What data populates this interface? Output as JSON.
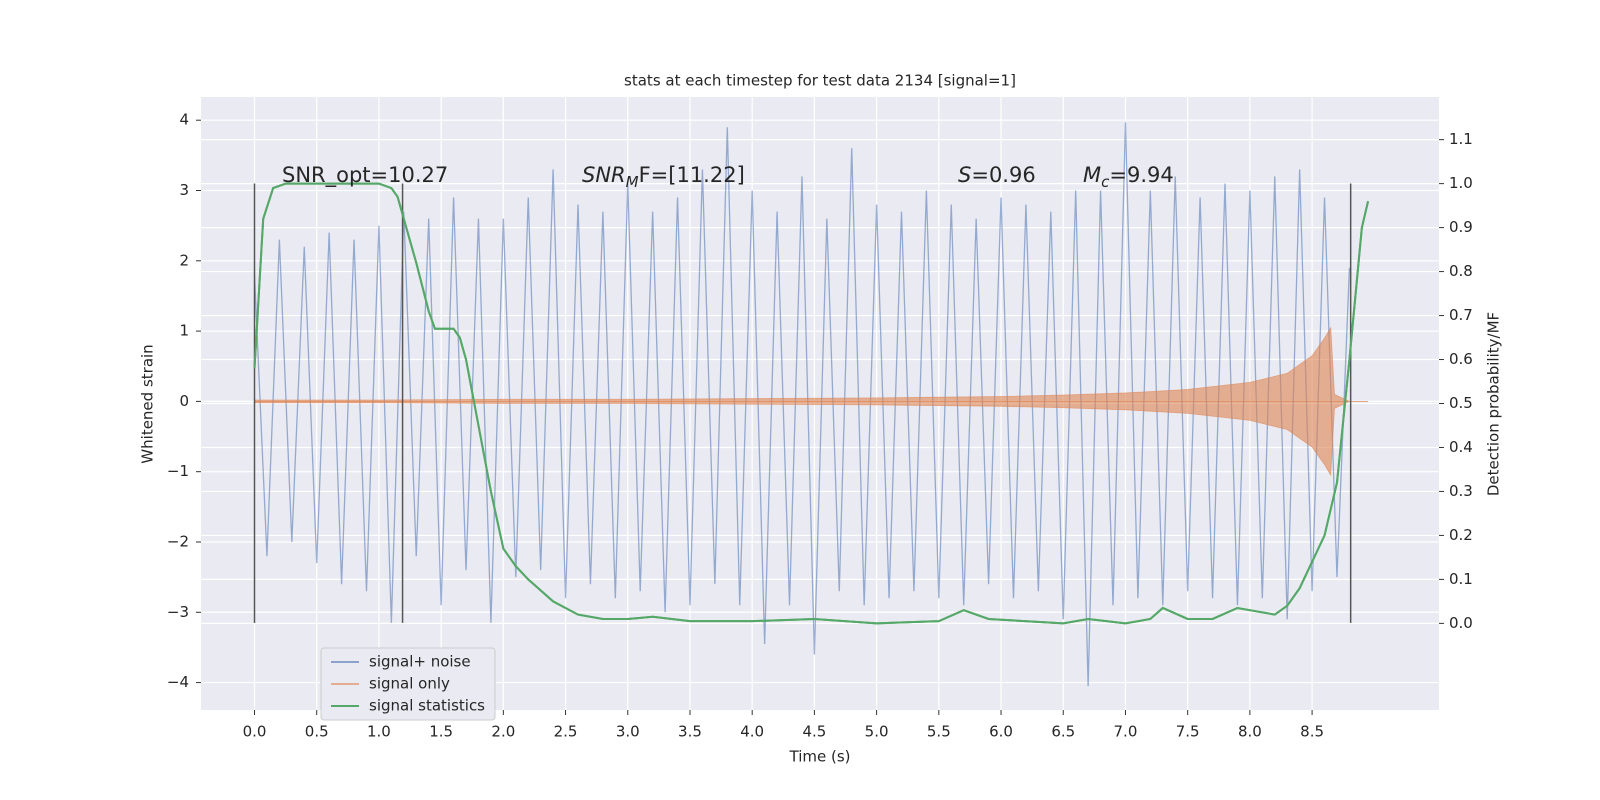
{
  "chart_data": {
    "type": "line",
    "title": "stats at each timestep for test data 2134 [signal=1]",
    "x_label": "Time (s)",
    "y_label": "Whitened strain",
    "y2_label": "Detection probability/MF",
    "xlim": [
      -0.43,
      9.52
    ],
    "ylim": [
      -4.39,
      4.33
    ],
    "y2lim": [
      -0.197,
      1.197
    ],
    "xticks": [
      {
        "value": 0,
        "label": "0.0"
      },
      {
        "value": 0.5,
        "label": "0.5"
      },
      {
        "value": 1,
        "label": "1.0"
      },
      {
        "value": 1.5,
        "label": "1.5"
      },
      {
        "value": 2,
        "label": "2.0"
      },
      {
        "value": 2.5,
        "label": "2.5"
      },
      {
        "value": 3,
        "label": "3.0"
      },
      {
        "value": 3.5,
        "label": "3.5"
      },
      {
        "value": 4,
        "label": "4.0"
      },
      {
        "value": 4.5,
        "label": "4.5"
      },
      {
        "value": 5,
        "label": "5.0"
      },
      {
        "value": 5.5,
        "label": "5.5"
      },
      {
        "value": 6,
        "label": "6.0"
      },
      {
        "value": 6.5,
        "label": "6.5"
      },
      {
        "value": 7,
        "label": "7.0"
      },
      {
        "value": 7.5,
        "label": "7.5"
      },
      {
        "value": 8,
        "label": "8.0"
      },
      {
        "value": 8.5,
        "label": "8.5"
      }
    ],
    "yticks": [
      {
        "value": -4,
        "label": "−4"
      },
      {
        "value": -3,
        "label": "−3"
      },
      {
        "value": -2,
        "label": "−2"
      },
      {
        "value": -1,
        "label": "−1"
      },
      0,
      1,
      2,
      3,
      4
    ],
    "y2ticks": [
      {
        "value": 0,
        "label": "0.0"
      },
      {
        "value": 0.1,
        "label": "0.1"
      },
      {
        "value": 0.2,
        "label": "0.2"
      },
      {
        "value": 0.3,
        "label": "0.3"
      },
      {
        "value": 0.4,
        "label": "0.4"
      },
      {
        "value": 0.5,
        "label": "0.5"
      },
      {
        "value": 0.6,
        "label": "0.6"
      },
      {
        "value": 0.7,
        "label": "0.7"
      },
      {
        "value": 0.8,
        "label": "0.8"
      },
      {
        "value": 0.9,
        "label": "0.9"
      },
      {
        "value": 1,
        "label": "1.0"
      },
      {
        "value": 1.1,
        "label": "1.1"
      }
    ],
    "grid": true,
    "legend": "lower left",
    "series": [
      {
        "name": "signal+ noise",
        "color": "#4c72b0",
        "style": "line",
        "x": [
          0,
          0.1,
          0.2,
          0.3,
          0.4,
          0.5,
          0.6,
          0.7,
          0.8,
          0.9,
          1,
          1.1,
          1.2,
          1.3,
          1.4,
          1.5,
          1.6,
          1.7,
          1.8,
          1.9,
          2,
          2.1,
          2.2,
          2.3,
          2.4,
          2.5,
          2.6,
          2.7,
          2.8,
          2.9,
          3,
          3.1,
          3.2,
          3.3,
          3.4,
          3.5,
          3.6,
          3.7,
          3.8,
          3.9,
          4,
          4.1,
          4.2,
          4.3,
          4.4,
          4.5,
          4.6,
          4.7,
          4.8,
          4.9,
          5,
          5.1,
          5.2,
          5.3,
          5.4,
          5.5,
          5.6,
          5.7,
          5.8,
          5.9,
          6,
          6.1,
          6.2,
          6.3,
          6.4,
          6.5,
          6.6,
          6.7,
          6.8,
          6.9,
          7,
          7.1,
          7.2,
          7.3,
          7.4,
          7.5,
          7.6,
          7.7,
          7.8,
          7.9,
          8,
          8.1,
          8.2,
          8.3,
          8.4,
          8.5,
          8.6,
          8.7,
          8.8
        ],
        "values": [
          1.8,
          -2.2,
          2.3,
          -2.0,
          2.2,
          -2.3,
          2.4,
          -2.6,
          2.3,
          -2.7,
          2.5,
          -3.15,
          2.7,
          -2.2,
          2.6,
          -2.9,
          2.9,
          -2.4,
          2.6,
          -3.15,
          2.6,
          -2.5,
          2.9,
          -2.4,
          3.3,
          -2.8,
          2.8,
          -2.6,
          2.7,
          -2.8,
          3.1,
          -2.7,
          2.7,
          -3.0,
          2.9,
          -2.9,
          3.3,
          -2.6,
          3.9,
          -2.9,
          3.0,
          -3.45,
          2.7,
          -2.9,
          3.2,
          -3.6,
          2.6,
          -2.7,
          3.6,
          -2.9,
          2.8,
          -2.8,
          2.7,
          -2.7,
          3.0,
          -2.8,
          2.8,
          -2.9,
          2.6,
          -2.6,
          2.9,
          -2.8,
          2.8,
          -2.7,
          2.7,
          -3.1,
          3.0,
          -4.05,
          3.0,
          -2.9,
          3.97,
          -2.8,
          3.0,
          -2.9,
          3.2,
          -2.7,
          2.9,
          -2.8,
          3.1,
          -2.9,
          3.0,
          -2.8,
          3.2,
          -3.1,
          3.3,
          -2.7,
          2.9,
          -2.5,
          1.9
        ]
      },
      {
        "name": "signal only",
        "color": "#dd8452",
        "style": "envelope",
        "x": [
          0,
          1,
          2,
          3,
          4,
          5,
          5.5,
          6,
          6.5,
          7,
          7.5,
          8,
          8.3,
          8.5,
          8.6,
          8.65,
          8.68,
          8.8,
          8.95
        ],
        "values": [
          0.02,
          0.02,
          0.03,
          0.03,
          0.04,
          0.05,
          0.06,
          0.07,
          0.09,
          0.12,
          0.17,
          0.27,
          0.4,
          0.65,
          0.9,
          1.05,
          0.1,
          0.0,
          0.0
        ]
      },
      {
        "name": "signal statistics",
        "color": "#55a868",
        "style": "line",
        "axis": "y2",
        "x": [
          0,
          0.07,
          0.15,
          0.25,
          0.5,
          0.8,
          1.0,
          1.1,
          1.15,
          1.2,
          1.3,
          1.4,
          1.45,
          1.55,
          1.6,
          1.65,
          1.7,
          1.8,
          1.9,
          2.0,
          2.1,
          2.2,
          2.4,
          2.6,
          2.8,
          3.0,
          3.2,
          3.5,
          4.0,
          4.5,
          5.0,
          5.5,
          5.7,
          5.9,
          6.5,
          6.7,
          7.0,
          7.2,
          7.3,
          7.5,
          7.7,
          7.9,
          8.0,
          8.2,
          8.3,
          8.4,
          8.6,
          8.7,
          8.8,
          8.9,
          8.95
        ],
        "values": [
          0.58,
          0.92,
          0.99,
          1.0,
          1.0,
          1.0,
          1.0,
          0.99,
          0.97,
          0.92,
          0.82,
          0.71,
          0.67,
          0.67,
          0.67,
          0.65,
          0.6,
          0.45,
          0.3,
          0.17,
          0.13,
          0.1,
          0.05,
          0.02,
          0.01,
          0.01,
          0.015,
          0.005,
          0.005,
          0.01,
          0.0,
          0.005,
          0.03,
          0.01,
          0.0,
          0.01,
          0.0,
          0.01,
          0.035,
          0.01,
          0.01,
          0.035,
          0.03,
          0.02,
          0.04,
          0.08,
          0.2,
          0.32,
          0.6,
          0.9,
          0.96
        ]
      }
    ],
    "vlines": {
      "x": [
        0,
        1.19,
        8.81
      ],
      "ymin": -3.15,
      "ymax": 3.1,
      "color": "#555555"
    },
    "annotations": [
      {
        "main": "SNR_opt=10.27"
      },
      {
        "main": "SNR",
        "sub": "M",
        "tail": "F=[11.22]"
      },
      {
        "main": "S",
        "tail": "=0.96"
      },
      {
        "main": "M",
        "sub": "c",
        "tail": "=9.94"
      }
    ]
  }
}
